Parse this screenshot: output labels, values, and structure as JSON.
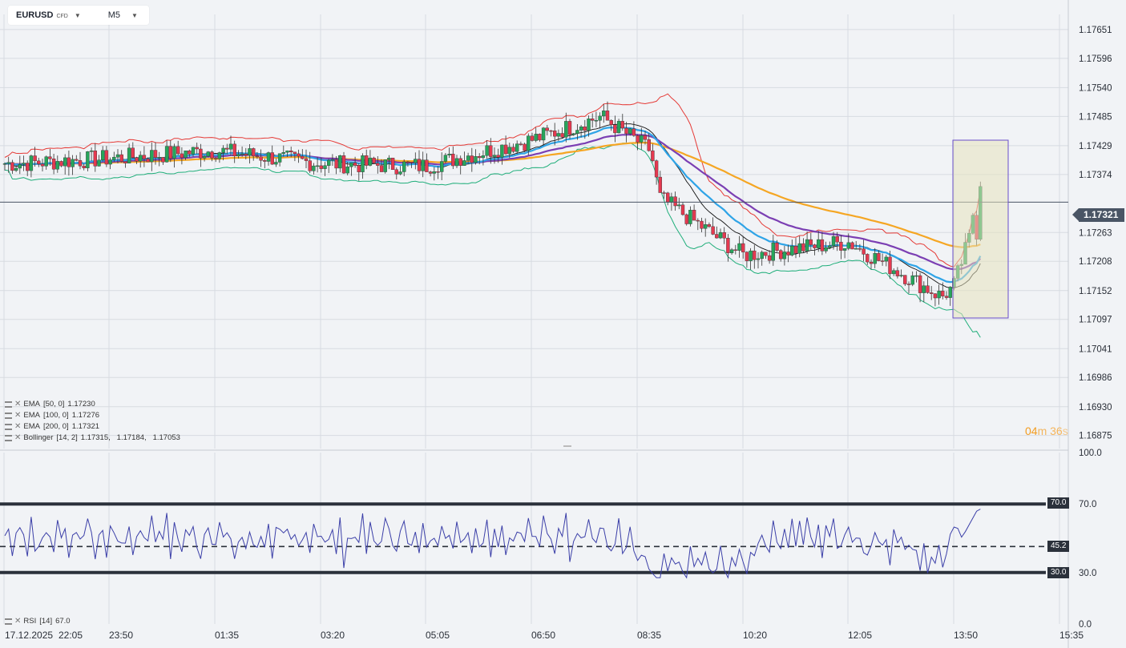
{
  "toolbar": {
    "symbol": "EURUSD",
    "symbol_tag": "CFD",
    "timeframe": "M5"
  },
  "price_axis": {
    "ticks": [
      "1.17651",
      "1.17596",
      "1.17540",
      "1.17485",
      "1.17429",
      "1.17374",
      "1.17263",
      "1.17208",
      "1.17152",
      "1.17097",
      "1.17041",
      "1.16986",
      "1.16930",
      "1.16875"
    ]
  },
  "current_price": "1.17321",
  "countdown": {
    "min": "04",
    "min_unit": "m",
    "sec": "36",
    "sec_unit": "s"
  },
  "time_axis": {
    "labels": [
      "17.12.2025",
      "22:05",
      "23:50",
      "01:35",
      "03:20",
      "05:05",
      "06:50",
      "08:35",
      "10:20",
      "12:05",
      "13:50",
      "15:35"
    ]
  },
  "indicators": [
    {
      "name": "EMA",
      "params": "[50, 0]",
      "values": "1.17230",
      "color": "#2fa4e7"
    },
    {
      "name": "EMA",
      "params": "[100, 0]",
      "values": "1.17276",
      "color": "#7b3fb3"
    },
    {
      "name": "EMA",
      "params": "[200, 0]",
      "values": "1.17321",
      "color": "#f5a623"
    },
    {
      "name": "Bollinger",
      "params": "[14, 2]",
      "values": "1.17315,   1.17184,   1.17053",
      "color": "#e53935"
    }
  ],
  "rsi": {
    "name": "RSI",
    "params": "[14]",
    "value": "67.0",
    "axis": [
      "100.0",
      "70.0",
      "30.0",
      "0.0"
    ],
    "levels": {
      "upper": "70.0",
      "mid": "45.2",
      "lower": "30.0"
    }
  },
  "colors": {
    "bull": "#26a65b",
    "bear": "#e53950",
    "bb_upper": "#e53935",
    "bb_lower": "#1fae7a",
    "bb_mid": "#111111",
    "ema50": "#2fa4e7",
    "ema100": "#7b3fb3",
    "ema200": "#f5a623",
    "rsi_line": "#3b3fa8"
  },
  "chart_data": {
    "type": "candlestick",
    "title": "EURUSD M5",
    "ylim": [
      1.1685,
      1.1768
    ],
    "x_range": [
      "17.12.2025 22:05",
      "15:35"
    ],
    "current_price": 1.17321,
    "overview_points": [
      {
        "t": "22:05",
        "close": 1.17395
      },
      {
        "t": "23:50",
        "close": 1.17405
      },
      {
        "t": "01:35",
        "close": 1.1742
      },
      {
        "t": "03:20",
        "close": 1.17395
      },
      {
        "t": "05:05",
        "close": 1.1739
      },
      {
        "t": "06:50",
        "close": 1.1744
      },
      {
        "t": "08:00",
        "close": 1.17485
      },
      {
        "t": "08:35",
        "close": 1.1742
      },
      {
        "t": "08:45",
        "close": 1.1733
      },
      {
        "t": "10:20",
        "close": 1.1722
      },
      {
        "t": "12:05",
        "close": 1.17245
      },
      {
        "t": "13:40",
        "close": 1.1714
      },
      {
        "t": "13:50",
        "close": 1.1716
      },
      {
        "t": "14:05",
        "close": 1.17321
      }
    ],
    "rsi": {
      "period": 14,
      "last": 67.0,
      "levels": [
        70,
        45.2,
        30
      ],
      "ylim": [
        0,
        100
      ]
    }
  }
}
